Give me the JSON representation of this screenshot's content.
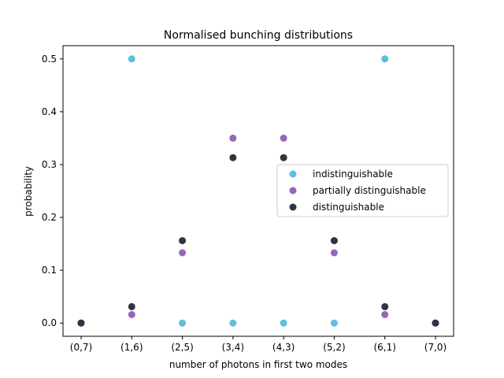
{
  "chart_data": {
    "type": "scatter",
    "title": "Normalised bunching distributions",
    "xlabel": "number of photons in first two modes",
    "ylabel": "probability",
    "categories": [
      "(0,7)",
      "(1,6)",
      "(2,5)",
      "(3,4)",
      "(4,3)",
      "(5,2)",
      "(6,1)",
      "(7,0)"
    ],
    "yticks": [
      "0.0",
      "0.1",
      "0.2",
      "0.3",
      "0.4",
      "0.5"
    ],
    "ylim": [
      -0.025,
      0.525
    ],
    "grid": false,
    "legend_position": "center-right",
    "series": [
      {
        "name": "indistinguishable",
        "color": "#5bc0de",
        "values": [
          0.0,
          0.5,
          0.0,
          0.0,
          0.0,
          0.0,
          0.5,
          0.0
        ]
      },
      {
        "name": "partially distinguishable",
        "color": "#9467bd",
        "values": [
          0.0,
          0.016,
          0.133,
          0.35,
          0.35,
          0.133,
          0.016,
          0.0
        ]
      },
      {
        "name": "distinguishable",
        "color": "#2e3440",
        "values": [
          0.0,
          0.031,
          0.156,
          0.313,
          0.313,
          0.156,
          0.031,
          0.0
        ]
      }
    ]
  }
}
